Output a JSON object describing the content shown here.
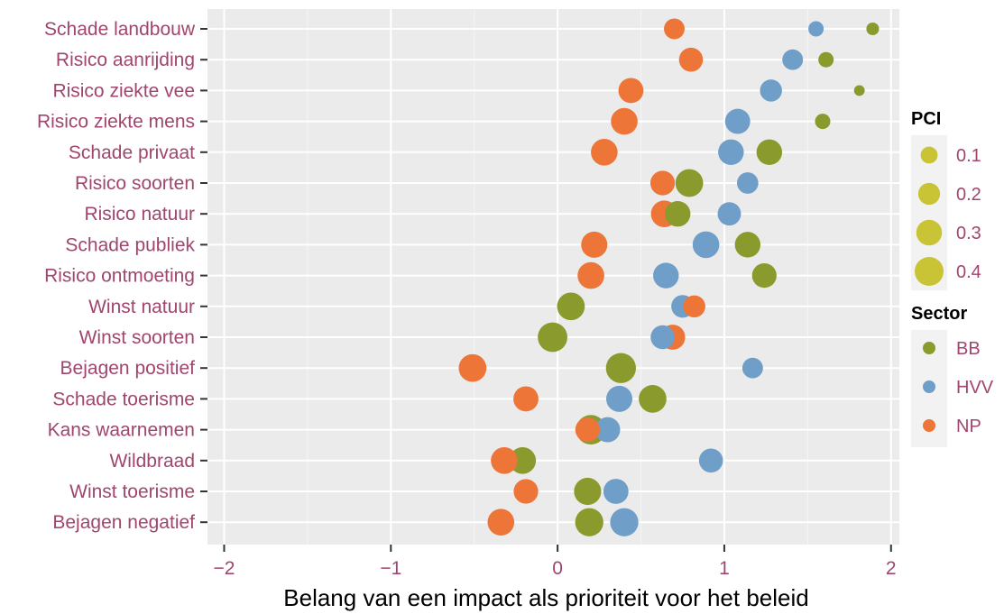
{
  "chart_data": {
    "type": "scatter",
    "xlabel": "Belang van een impact als prioriteit voor het beleid",
    "ylabel": "",
    "xlim": [
      -2.1,
      2.05
    ],
    "x_ticks": [
      "−2",
      "−1",
      "0",
      "1",
      "2"
    ],
    "x_tick_values": [
      -2,
      -1,
      0,
      1,
      2
    ],
    "grid": true,
    "label_color": "#a0466e",
    "panel_background": "#ebebeb",
    "categories": [
      "Schade landbouw",
      "Risico aanrijding",
      "Risico ziekte vee",
      "Risico ziekte mens",
      "Schade privaat",
      "Risico soorten",
      "Risico natuur",
      "Schade publiek",
      "Risico ontmoeting",
      "Winst natuur",
      "Winst soorten",
      "Bejagen positief",
      "Schade toerisme",
      "Kans waarnemen",
      "Wildbraad",
      "Winst toerisme",
      "Bejagen negatief"
    ],
    "series": [
      {
        "name": "BB",
        "color": "#8a9a2c",
        "points": [
          {
            "y": "Schade landbouw",
            "x": 1.89,
            "pci": 0.02
          },
          {
            "y": "Risico aanrijding",
            "x": 1.61,
            "pci": 0.04
          },
          {
            "y": "Risico ziekte vee",
            "x": 1.81,
            "pci": 0.01
          },
          {
            "y": "Risico ziekte mens",
            "x": 1.59,
            "pci": 0.04
          },
          {
            "y": "Schade privaat",
            "x": 1.27,
            "pci": 0.18
          },
          {
            "y": "Risico soorten",
            "x": 0.79,
            "pci": 0.22
          },
          {
            "y": "Risico natuur",
            "x": 0.72,
            "pci": 0.18
          },
          {
            "y": "Schade publiek",
            "x": 1.14,
            "pci": 0.18
          },
          {
            "y": "Risico ontmoeting",
            "x": 1.24,
            "pci": 0.16
          },
          {
            "y": "Winst natuur",
            "x": 0.08,
            "pci": 0.22
          },
          {
            "y": "Winst soorten",
            "x": -0.03,
            "pci": 0.26
          },
          {
            "y": "Bejagen positief",
            "x": 0.38,
            "pci": 0.27
          },
          {
            "y": "Schade toerisme",
            "x": 0.57,
            "pci": 0.22
          },
          {
            "y": "Kans waarnemen",
            "x": 0.2,
            "pci": 0.26
          },
          {
            "y": "Wildbraad",
            "x": -0.21,
            "pci": 0.2
          },
          {
            "y": "Winst toerisme",
            "x": 0.18,
            "pci": 0.21
          },
          {
            "y": "Bejagen negatief",
            "x": 0.19,
            "pci": 0.23
          }
        ]
      },
      {
        "name": "HVV",
        "color": "#6f9ec8",
        "points": [
          {
            "y": "Schade landbouw",
            "x": 1.55,
            "pci": 0.04
          },
          {
            "y": "Risico aanrijding",
            "x": 1.41,
            "pci": 0.1
          },
          {
            "y": "Risico ziekte vee",
            "x": 1.28,
            "pci": 0.12
          },
          {
            "y": "Risico ziekte mens",
            "x": 1.08,
            "pci": 0.17
          },
          {
            "y": "Schade privaat",
            "x": 1.04,
            "pci": 0.18
          },
          {
            "y": "Risico soorten",
            "x": 1.14,
            "pci": 0.11
          },
          {
            "y": "Risico natuur",
            "x": 1.03,
            "pci": 0.14
          },
          {
            "y": "Schade publiek",
            "x": 0.89,
            "pci": 0.2
          },
          {
            "y": "Risico ontmoeting",
            "x": 0.65,
            "pci": 0.18
          },
          {
            "y": "Winst natuur",
            "x": 0.75,
            "pci": 0.13
          },
          {
            "y": "Winst soorten",
            "x": 0.63,
            "pci": 0.15
          },
          {
            "y": "Bejagen positief",
            "x": 1.17,
            "pci": 0.1
          },
          {
            "y": "Schade toerisme",
            "x": 0.37,
            "pci": 0.19
          },
          {
            "y": "Kans waarnemen",
            "x": 0.3,
            "pci": 0.17
          },
          {
            "y": "Wildbraad",
            "x": 0.92,
            "pci": 0.15
          },
          {
            "y": "Winst toerisme",
            "x": 0.35,
            "pci": 0.17
          },
          {
            "y": "Bejagen negatief",
            "x": 0.4,
            "pci": 0.23
          }
        ]
      },
      {
        "name": "NP",
        "color": "#ee7538",
        "points": [
          {
            "y": "Schade landbouw",
            "x": 0.7,
            "pci": 0.1
          },
          {
            "y": "Risico aanrijding",
            "x": 0.8,
            "pci": 0.15
          },
          {
            "y": "Risico ziekte vee",
            "x": 0.44,
            "pci": 0.17
          },
          {
            "y": "Risico ziekte mens",
            "x": 0.4,
            "pci": 0.2
          },
          {
            "y": "Schade privaat",
            "x": 0.28,
            "pci": 0.2
          },
          {
            "y": "Risico soorten",
            "x": 0.63,
            "pci": 0.16
          },
          {
            "y": "Risico natuur",
            "x": 0.64,
            "pci": 0.2
          },
          {
            "y": "Schade publiek",
            "x": 0.22,
            "pci": 0.19
          },
          {
            "y": "Risico ontmoeting",
            "x": 0.2,
            "pci": 0.2
          },
          {
            "y": "Winst natuur",
            "x": 0.82,
            "pci": 0.12
          },
          {
            "y": "Winst soorten",
            "x": 0.69,
            "pci": 0.17
          },
          {
            "y": "Bejagen positief",
            "x": -0.51,
            "pci": 0.22
          },
          {
            "y": "Schade toerisme",
            "x": -0.19,
            "pci": 0.17
          },
          {
            "y": "Kans waarnemen",
            "x": 0.18,
            "pci": 0.16
          },
          {
            "y": "Wildbraad",
            "x": -0.32,
            "pci": 0.2
          },
          {
            "y": "Winst toerisme",
            "x": -0.19,
            "pci": 0.16
          },
          {
            "y": "Bejagen negatief",
            "x": -0.34,
            "pci": 0.2
          }
        ]
      }
    ],
    "legend": {
      "position": "right",
      "pci": {
        "title": "PCI",
        "labels": [
          "0.1",
          "0.2",
          "0.3",
          "0.4"
        ],
        "values": [
          0.1,
          0.2,
          0.3,
          0.4
        ],
        "color": "#c8c435"
      },
      "sector": {
        "title": "Sector",
        "labels": [
          "BB",
          "HVV",
          "NP"
        ]
      }
    }
  }
}
